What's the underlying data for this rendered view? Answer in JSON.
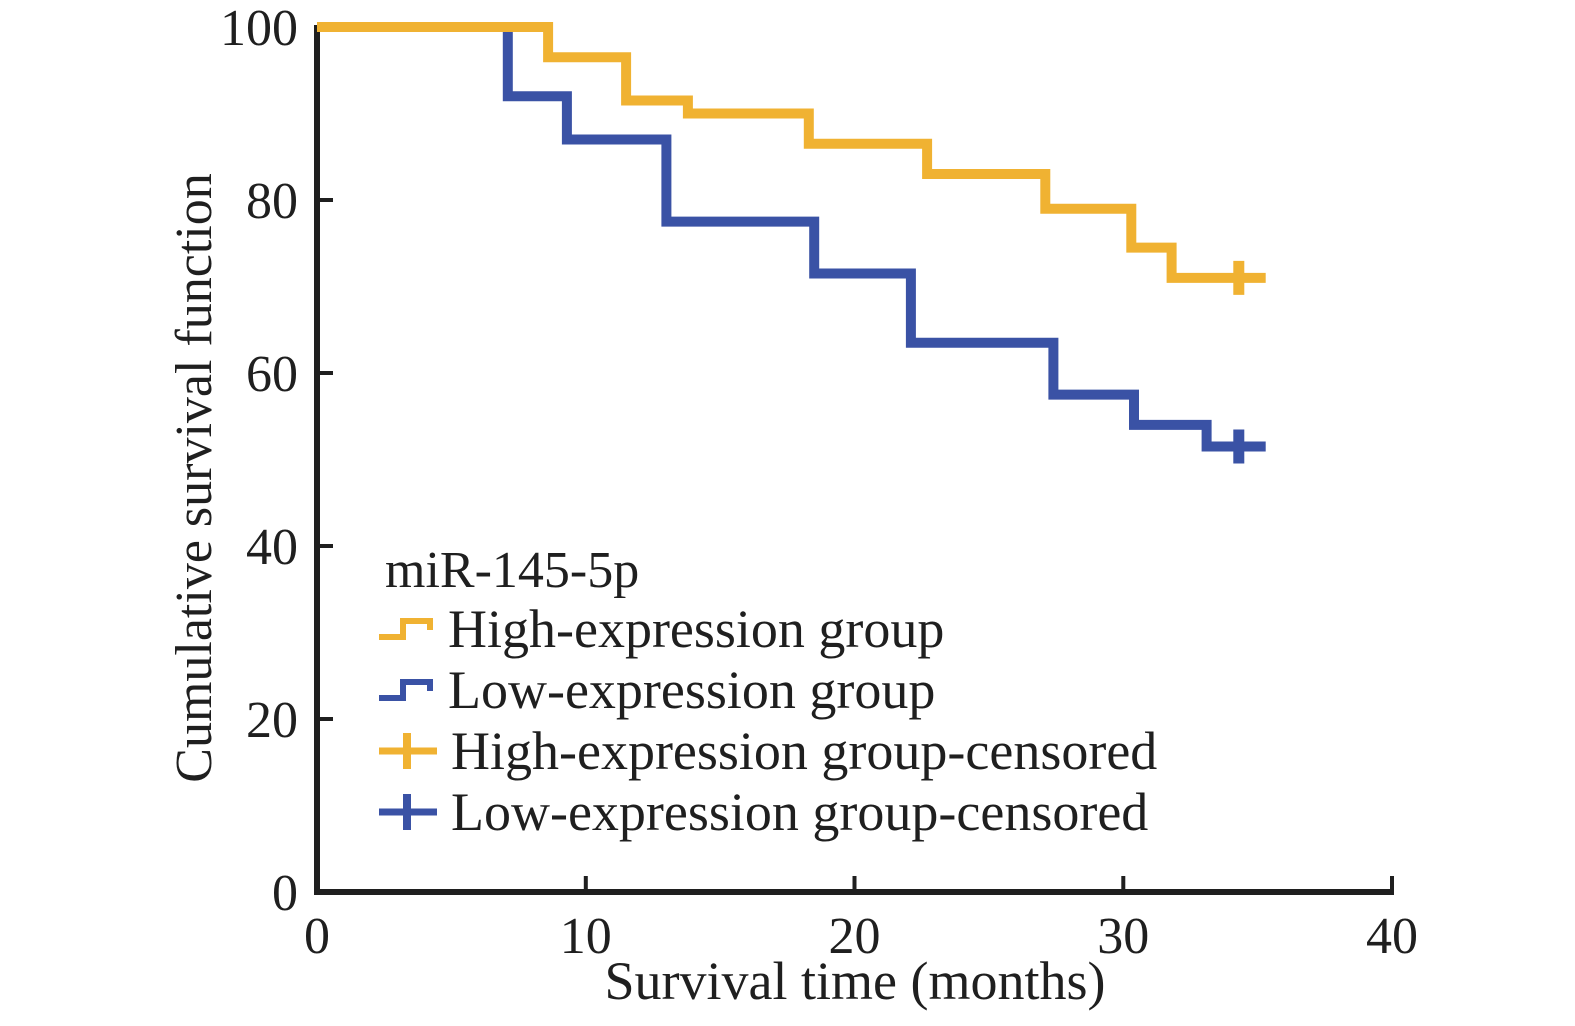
{
  "figure": {
    "background": "#ffffff",
    "text_color": "#1f1f1f",
    "axis_color": "#1f1f1f",
    "legend": {
      "title": "miR-145-5p",
      "items": [
        {
          "label": "High-expression group",
          "marker": "step-line",
          "series": 0
        },
        {
          "label": "Low-expression group",
          "marker": "step-line",
          "series": 1
        },
        {
          "label": "High-expression group-censored",
          "marker": "plus",
          "series": 0
        },
        {
          "label": "Low-expression group-censored",
          "marker": "plus",
          "series": 1
        }
      ]
    }
  },
  "chart_data": {
    "type": "line",
    "subtype": "kaplan-meier-step-survival",
    "title": "",
    "xlabel": "Survival time (months)",
    "ylabel": "Cumulative survival function",
    "xlim": [
      0,
      40
    ],
    "ylim": [
      0,
      100
    ],
    "xticks": [
      0,
      10,
      20,
      30,
      40
    ],
    "yticks": [
      0,
      20,
      40,
      60,
      80,
      100
    ],
    "grid": false,
    "legend_position": "inside-lower-left",
    "series": [
      {
        "name": "High-expression group",
        "color": "#F0B232",
        "steps_time_survival_pct": [
          [
            0,
            100
          ],
          [
            8.6,
            96.5
          ],
          [
            11.5,
            91.5
          ],
          [
            13.8,
            90
          ],
          [
            18.3,
            86.5
          ],
          [
            22.7,
            83
          ],
          [
            27.1,
            79
          ],
          [
            30.3,
            74.5
          ],
          [
            31.8,
            71
          ]
        ],
        "end_time": 35.3,
        "censored_points": [
          [
            34.3,
            71
          ]
        ]
      },
      {
        "name": "Low-expression group",
        "color": "#3A52A5",
        "steps_time_survival_pct": [
          [
            0,
            100
          ],
          [
            7.1,
            92
          ],
          [
            9.3,
            87
          ],
          [
            13,
            77.5
          ],
          [
            18.5,
            71.5
          ],
          [
            22.1,
            63.5
          ],
          [
            27.4,
            57.5
          ],
          [
            30.4,
            54
          ],
          [
            33.1,
            51.5
          ]
        ],
        "end_time": 35.3,
        "censored_points": [
          [
            34.3,
            51.5
          ]
        ]
      }
    ]
  }
}
